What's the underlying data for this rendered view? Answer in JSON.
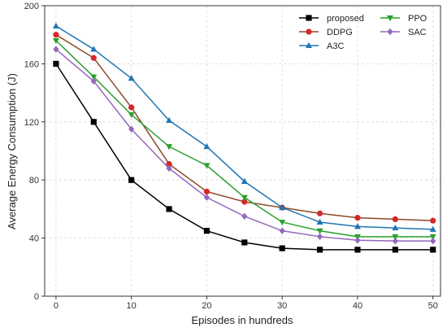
{
  "chart_data": {
    "type": "line",
    "xlabel": "Episodes in hundreds",
    "ylabel": "Average Energy Consumption (J)",
    "xlim": [
      -1.5,
      51
    ],
    "ylim": [
      0,
      200
    ],
    "xticks": [
      0,
      10,
      20,
      30,
      40,
      50
    ],
    "yticks": [
      0,
      40,
      80,
      120,
      160,
      200
    ],
    "grid": true,
    "legend_position": "top-right",
    "x": [
      0,
      5,
      10,
      15,
      20,
      25,
      30,
      35,
      40,
      45,
      50
    ],
    "series": [
      {
        "name": "proposed",
        "color": "#000000",
        "marker": "square",
        "values": [
          160,
          120,
          80,
          60,
          45,
          37,
          33,
          32,
          32,
          32,
          32
        ]
      },
      {
        "name": "DDPG",
        "color": "#d62728",
        "line_color": "#8c4a2a",
        "marker": "circle",
        "values": [
          180,
          164,
          130,
          91,
          72,
          65,
          61,
          57,
          54,
          53,
          52
        ]
      },
      {
        "name": "A3C",
        "color": "#1f77b4",
        "marker": "triangle-up",
        "values": [
          186,
          170,
          150,
          121,
          103,
          79,
          61,
          51,
          48,
          47,
          46
        ]
      },
      {
        "name": "PPO",
        "color": "#2ca02c",
        "marker": "triangle-down",
        "values": [
          176,
          151,
          125,
          103,
          90,
          68,
          51,
          45,
          41,
          41,
          41
        ]
      },
      {
        "name": "SAC",
        "color": "#9467bd",
        "marker": "diamond",
        "values": [
          170,
          148,
          115,
          88,
          68,
          55,
          45,
          41,
          38.5,
          38,
          38
        ]
      }
    ],
    "legend_order": [
      "proposed",
      "PPO",
      "DDPG",
      "SAC",
      "A3C"
    ]
  }
}
